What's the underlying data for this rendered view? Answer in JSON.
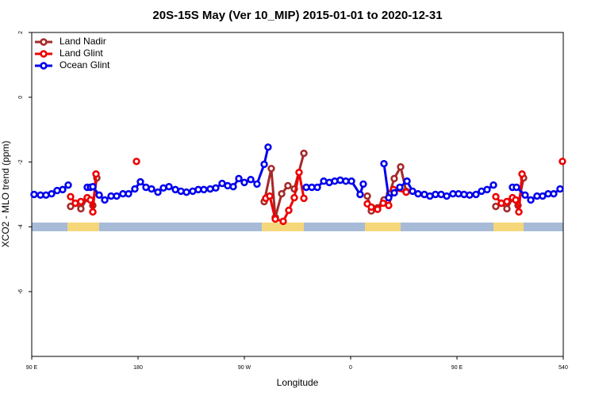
{
  "chart_data": {
    "type": "line",
    "title": "20S-15S May (Ver 10_MIP)   2015-01-01 to 2020-12-31",
    "x_label": "Longitude",
    "y_label": "XCO2 - MLO trend (ppm)",
    "xlim": [
      90,
      540
    ],
    "ylim": [
      -8,
      2
    ],
    "xticks": [
      {
        "value": 90,
        "label": "90 E"
      },
      180,
      {
        "value": 270,
        "label": "90 W"
      },
      {
        "value": 360,
        "label": "0"
      },
      {
        "value": 450,
        "label": "90 E"
      },
      540
    ],
    "yticks": [
      -6,
      -4,
      -2,
      0,
      2
    ],
    "legend": "top-left",
    "series": [
      {
        "name": "Land Nadir",
        "color": "#a52a2a",
        "x": [
          122.9,
          126.9,
          131.6,
          137.0,
          141.7,
          145.1,
          null,
          286.8,
          292.8,
          296.2,
          301.6,
          306.9,
          312.3,
          320.4,
          null,
          374.1,
          377.5,
          382.8,
          388.2,
          392.9,
          396.9,
          402.3,
          407.0,
          null,
          482.9,
          487.6,
          492.3,
          497.0,
          501.7,
          506.4
        ],
        "values": [
          -3.37,
          -3.27,
          -3.44,
          -3.12,
          -3.34,
          -2.49,
          null,
          -3.22,
          -2.2,
          -3.71,
          -2.98,
          -2.73,
          -2.83,
          -1.73,
          null,
          -3.05,
          -3.51,
          -3.41,
          -3.17,
          -2.98,
          -2.51,
          -2.15,
          -2.9,
          null,
          -3.37,
          -3.27,
          -3.44,
          -3.12,
          -3.34,
          -2.49
        ]
      },
      {
        "name": "Land Glint",
        "color": "#ee0000",
        "x": [
          122.9,
          126.9,
          131.6,
          137.0,
          139.7,
          141.7,
          144.4,
          null,
          178.7,
          null,
          288.1,
          291.5,
          296.2,
          302.9,
          307.6,
          312.3,
          316.3,
          320.4,
          null,
          374.1,
          377.5,
          382.8,
          387.5,
          392.2,
          396.3,
          407.0,
          null,
          482.9,
          487.6,
          492.3,
          497.0,
          499.7,
          502.4,
          505.1,
          null,
          539.3
        ],
        "values": [
          -3.07,
          -3.27,
          -3.22,
          -3.1,
          -3.17,
          -3.54,
          -2.37,
          null,
          -1.98,
          null,
          -3.12,
          -3.05,
          -3.76,
          -3.83,
          -3.49,
          -3.1,
          -2.32,
          -3.12,
          null,
          -3.29,
          -3.39,
          -3.46,
          -3.27,
          -3.34,
          -2.85,
          -2.93,
          null,
          -3.07,
          -3.27,
          -3.22,
          -3.1,
          -3.17,
          -3.54,
          -2.37,
          null,
          -1.98
        ]
      },
      {
        "name": "Ocean Glint",
        "color": "#0000ee",
        "x": [
          92.0,
          97.4,
          102.1,
          106.8,
          111.5,
          116.2,
          120.9,
          null,
          137.0,
          139.7,
          141.7,
          147.1,
          151.8,
          157.2,
          161.9,
          167.2,
          171.9,
          177.3,
          182.0,
          186.7,
          191.4,
          196.8,
          201.5,
          206.2,
          211.6,
          216.3,
          221.0,
          226.3,
          231.0,
          235.7,
          241.1,
          245.8,
          251.2,
          255.9,
          260.6,
          265.3,
          270.0,
          275.4,
          280.7,
          286.8,
          290.1,
          null,
          322.4,
          327.1,
          331.8,
          337.2,
          341.9,
          346.5,
          351.2,
          355.9,
          360.7,
          368.0,
          370.7,
          null,
          388.2,
          392.2,
          396.9,
          401.6,
          407.7,
          412.4,
          417.1,
          422.4,
          427.1,
          431.8,
          436.6,
          441.3,
          446.6,
          451.3,
          456.0,
          460.7,
          466.1,
          470.8,
          475.5,
          480.9,
          null,
          497.0,
          500.4,
          507.7,
          512.5,
          517.8,
          522.5,
          527.2,
          531.9,
          537.3
        ],
        "values": [
          -3.0,
          -3.02,
          -3.02,
          -2.98,
          -2.88,
          -2.85,
          -2.71,
          null,
          -2.78,
          -2.78,
          -2.76,
          -3.02,
          -3.17,
          -3.05,
          -3.05,
          -2.98,
          -2.98,
          -2.83,
          -2.61,
          -2.78,
          -2.83,
          -2.93,
          -2.8,
          -2.76,
          -2.85,
          -2.9,
          -2.93,
          -2.9,
          -2.85,
          -2.85,
          -2.83,
          -2.8,
          -2.66,
          -2.73,
          -2.76,
          -2.51,
          -2.63,
          -2.54,
          -2.68,
          -2.07,
          -1.54,
          null,
          -2.78,
          -2.78,
          -2.78,
          -2.59,
          -2.63,
          -2.59,
          -2.56,
          -2.59,
          -2.59,
          -3.0,
          -2.68,
          null,
          -2.05,
          -3.1,
          -2.95,
          -2.78,
          -2.59,
          -2.9,
          -2.98,
          -3.0,
          -3.05,
          -3.0,
          -3.0,
          -3.05,
          -2.98,
          -2.98,
          -3.0,
          -3.02,
          -3.0,
          -2.9,
          -2.85,
          -2.71,
          null,
          -2.78,
          -2.78,
          -3.02,
          -3.17,
          -3.05,
          -3.05,
          -2.98,
          -2.98,
          -2.83
        ]
      }
    ]
  }
}
